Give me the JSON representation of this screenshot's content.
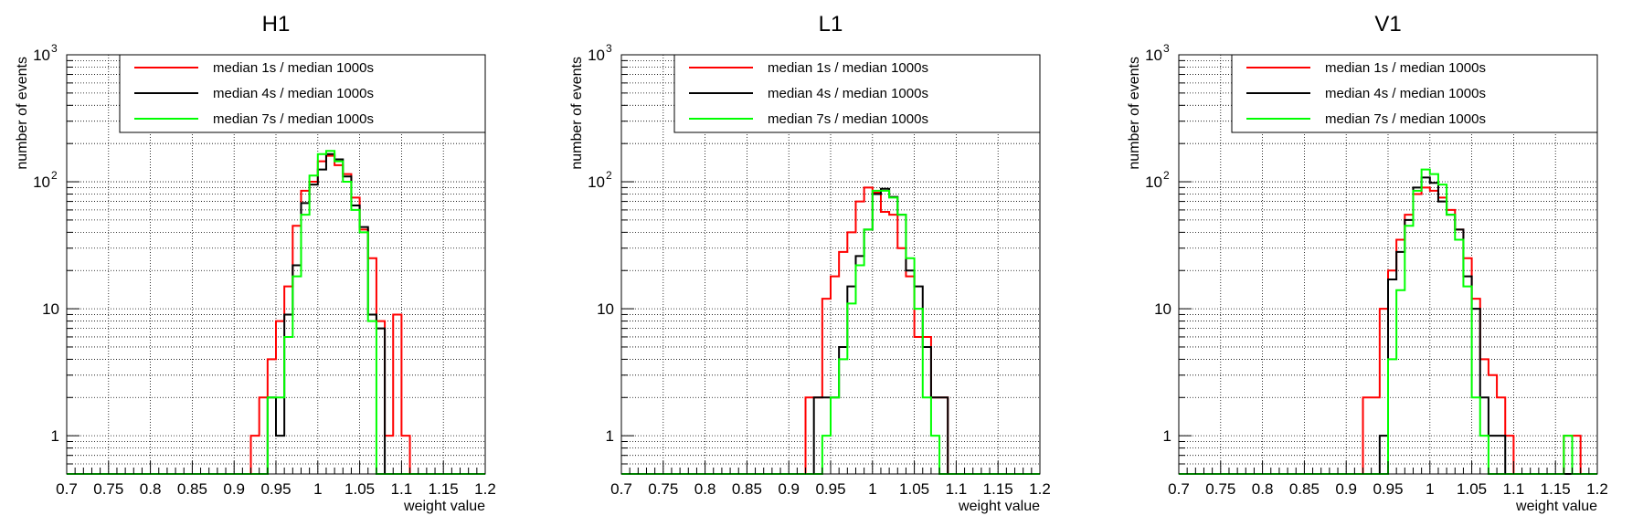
{
  "figure": {
    "x_label": "weight value",
    "y_label": "number of events",
    "x_tick_labels": [
      "0.7",
      "0.75",
      "0.8",
      "0.85",
      "0.9",
      "0.95",
      "1",
      "1.05",
      "1.1",
      "1.15",
      "1.2"
    ],
    "y_tick_labels": [
      {
        "base": "1",
        "exp": ""
      },
      {
        "base": "10",
        "exp": ""
      },
      {
        "base": "10",
        "exp": "2"
      },
      {
        "base": "10",
        "exp": "3"
      }
    ]
  },
  "colors": {
    "series_red": "#ff0000",
    "series_black": "#000000",
    "series_green": "#00ff00",
    "grid": "#000000"
  },
  "chart_data": [
    {
      "type": "histogram",
      "title": "H1",
      "xlabel": "weight value",
      "ylabel": "number of events",
      "xlim": [
        0.7,
        1.2
      ],
      "ylim": [
        0.5,
        1000
      ],
      "yscale": "log",
      "grid": true,
      "bin_start": 0.7,
      "bin_width": 0.01,
      "legend_position": "top-right",
      "series": [
        {
          "name": "median 1s / median 1000s",
          "color": "#ff0000",
          "values": [
            0,
            0,
            0,
            0,
            0,
            0,
            0,
            0,
            0,
            0,
            0,
            0,
            0,
            0,
            0,
            0,
            0,
            0,
            0,
            0,
            0,
            0,
            1,
            2,
            4,
            8,
            15,
            45,
            85,
            100,
            145,
            160,
            135,
            115,
            75,
            42,
            25,
            8,
            1,
            9,
            1,
            0,
            0,
            0,
            0,
            0,
            0,
            0,
            0,
            0
          ]
        },
        {
          "name": "median 4s / median 1000s",
          "color": "#000000",
          "values": [
            0,
            0,
            0,
            0,
            0,
            0,
            0,
            0,
            0,
            0,
            0,
            0,
            0,
            0,
            0,
            0,
            0,
            0,
            0,
            0,
            0,
            0,
            0,
            0,
            2,
            1,
            9,
            22,
            68,
            95,
            125,
            165,
            150,
            110,
            65,
            44,
            9,
            7,
            0,
            0,
            0,
            0,
            0,
            0,
            0,
            0,
            0,
            0,
            0,
            0
          ]
        },
        {
          "name": "median 7s / median 1000s",
          "color": "#00ff00",
          "values": [
            0,
            0,
            0,
            0,
            0,
            0,
            0,
            0,
            0,
            0,
            0,
            0,
            0,
            0,
            0,
            0,
            0,
            0,
            0,
            0,
            0,
            0,
            0,
            0,
            2,
            2,
            6,
            18,
            55,
            112,
            165,
            175,
            145,
            100,
            60,
            40,
            8,
            0,
            0,
            0,
            0,
            0,
            0,
            0,
            0,
            0,
            0,
            0,
            0,
            0
          ]
        }
      ]
    },
    {
      "type": "histogram",
      "title": "L1",
      "xlabel": "weight value",
      "ylabel": "number of events",
      "xlim": [
        0.7,
        1.2
      ],
      "ylim": [
        0.5,
        1000
      ],
      "yscale": "log",
      "grid": true,
      "bin_start": 0.7,
      "bin_width": 0.01,
      "legend_position": "top-right",
      "series": [
        {
          "name": "median 1s / median 1000s",
          "color": "#ff0000",
          "values": [
            0,
            0,
            0,
            0,
            0,
            0,
            0,
            0,
            0,
            0,
            0,
            0,
            0,
            0,
            0,
            0,
            0,
            0,
            0,
            0,
            0,
            0,
            2,
            2,
            12,
            18,
            28,
            40,
            70,
            90,
            82,
            58,
            55,
            30,
            18,
            6,
            6,
            2,
            2,
            0,
            0,
            0,
            0,
            0,
            0,
            0,
            0,
            0,
            0,
            0,
            0
          ]
        },
        {
          "name": "median 4s / median 1000s",
          "color": "#000000",
          "values": [
            0,
            0,
            0,
            0,
            0,
            0,
            0,
            0,
            0,
            0,
            0,
            0,
            0,
            0,
            0,
            0,
            0,
            0,
            0,
            0,
            0,
            0,
            0,
            2,
            2,
            2,
            5,
            15,
            26,
            42,
            80,
            88,
            76,
            55,
            20,
            15,
            5,
            2,
            2,
            0,
            0,
            0,
            0,
            0,
            0,
            0,
            0,
            0,
            0,
            0,
            0
          ]
        },
        {
          "name": "median 7s / median 1000s",
          "color": "#00ff00",
          "values": [
            0,
            0,
            0,
            0,
            0,
            0,
            0,
            0,
            0,
            0,
            0,
            0,
            0,
            0,
            0,
            0,
            0,
            0,
            0,
            0,
            0,
            0,
            0,
            0,
            1,
            2,
            4,
            11,
            22,
            42,
            85,
            85,
            75,
            55,
            25,
            10,
            2,
            1,
            0,
            0,
            0,
            0,
            0,
            0,
            0,
            0,
            0,
            0,
            0,
            0,
            0
          ]
        }
      ]
    },
    {
      "type": "histogram",
      "title": "V1",
      "xlabel": "weight value",
      "ylabel": "number of events",
      "xlim": [
        0.7,
        1.2
      ],
      "ylim": [
        0.5,
        1000
      ],
      "yscale": "log",
      "grid": true,
      "bin_start": 0.7,
      "bin_width": 0.01,
      "legend_position": "top-right",
      "series": [
        {
          "name": "median 1s / median 1000s",
          "color": "#ff0000",
          "values": [
            0,
            0,
            0,
            0,
            0,
            0,
            0,
            0,
            0,
            0,
            0,
            0,
            0,
            0,
            0,
            0,
            0,
            0,
            0,
            0,
            0,
            0,
            2,
            2,
            10,
            20,
            35,
            55,
            80,
            90,
            85,
            75,
            60,
            42,
            25,
            12,
            4,
            3,
            2,
            1,
            0,
            0,
            0,
            0,
            0,
            0,
            1,
            1,
            0,
            0
          ]
        },
        {
          "name": "median 4s / median 1000s",
          "color": "#000000",
          "values": [
            0,
            0,
            0,
            0,
            0,
            0,
            0,
            0,
            0,
            0,
            0,
            0,
            0,
            0,
            0,
            0,
            0,
            0,
            0,
            0,
            0,
            0,
            0,
            0,
            1,
            17,
            28,
            50,
            90,
            108,
            98,
            70,
            55,
            42,
            18,
            10,
            2,
            1,
            1,
            0,
            0,
            0,
            0,
            0,
            0,
            0,
            0,
            0,
            0,
            0
          ]
        },
        {
          "name": "median 7s / median 1000s",
          "color": "#00ff00",
          "values": [
            0,
            0,
            0,
            0,
            0,
            0,
            0,
            0,
            0,
            0,
            0,
            0,
            0,
            0,
            0,
            0,
            0,
            0,
            0,
            0,
            0,
            0,
            0,
            0,
            0,
            4,
            14,
            45,
            85,
            125,
            115,
            95,
            55,
            35,
            15,
            2,
            1,
            0,
            0,
            0,
            0,
            0,
            0,
            0,
            0,
            0,
            1,
            0,
            0,
            0
          ]
        }
      ]
    }
  ]
}
